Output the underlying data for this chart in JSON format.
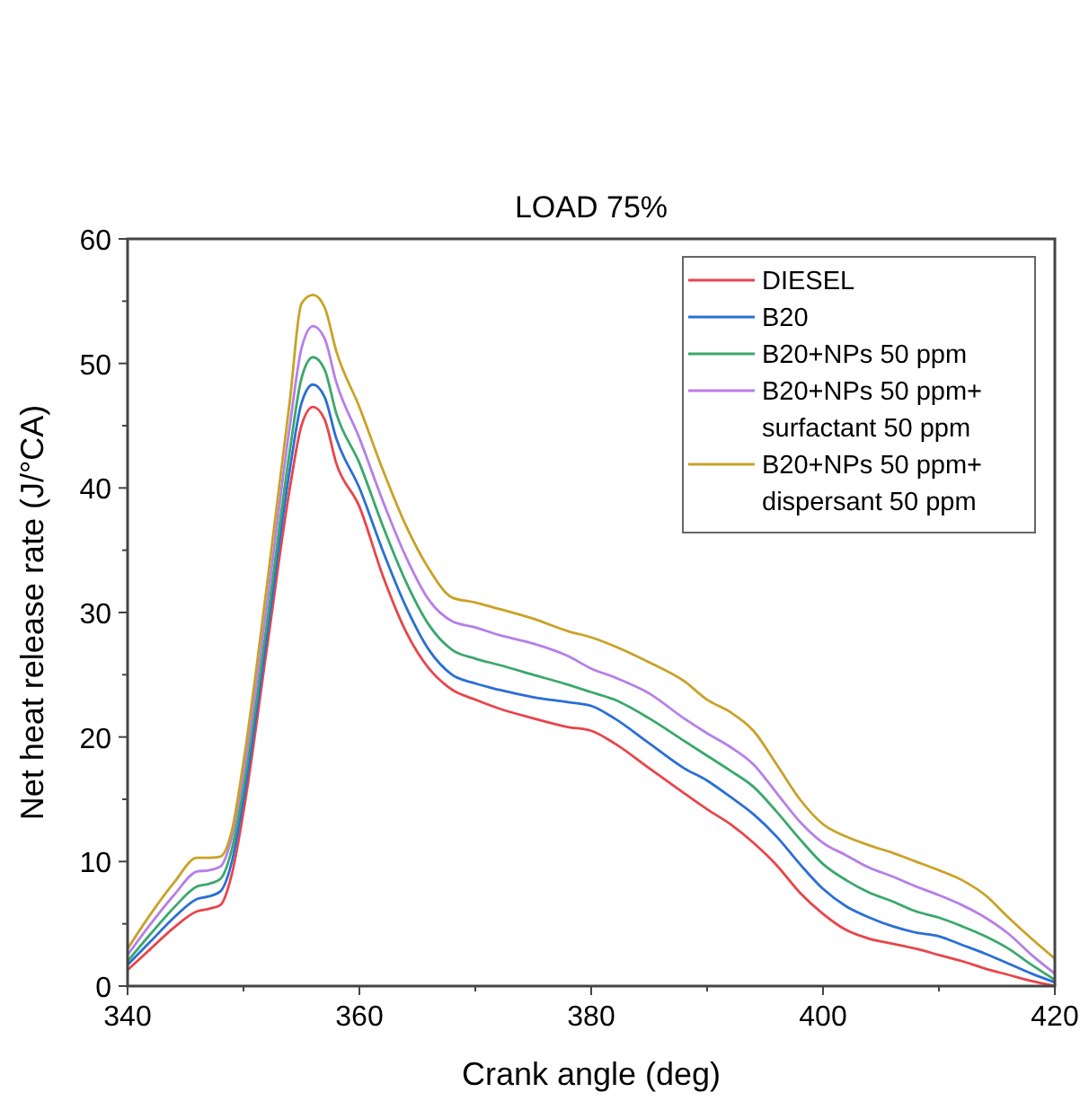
{
  "chart_data": {
    "type": "line",
    "title": "LOAD 75%",
    "xlabel": "Crank angle (deg)",
    "ylabel": "Net heat release rate (J/°CA)",
    "x": [
      340,
      342,
      344,
      346,
      347,
      348,
      349,
      350,
      352,
      354,
      355,
      356,
      357,
      358,
      360,
      362,
      364,
      366,
      368,
      370,
      372,
      375,
      378,
      380,
      382,
      385,
      388,
      390,
      392,
      394,
      396,
      398,
      400,
      402,
      404,
      406,
      408,
      410,
      412,
      414,
      416,
      418,
      420
    ],
    "series": [
      {
        "name": "DIESEL",
        "color": "#e8454a",
        "values": [
          1.3,
          3,
          4.7,
          6,
          6.2,
          6.5,
          9,
          14,
          27,
          40,
          45,
          46.5,
          45.5,
          42,
          38.5,
          33,
          28.5,
          25.5,
          23.8,
          23,
          22.3,
          21.5,
          20.8,
          20.5,
          19.5,
          17.5,
          15.5,
          14.2,
          13,
          11.5,
          9.7,
          7.5,
          5.8,
          4.5,
          3.8,
          3.4,
          3,
          2.5,
          2,
          1.4,
          0.9,
          0.4,
          0
        ]
      },
      {
        "name": "B20",
        "color": "#2a6fd6",
        "values": [
          1.7,
          3.6,
          5.5,
          7,
          7.2,
          7.6,
          10,
          15,
          28,
          41.5,
          46.8,
          48.3,
          47.3,
          44,
          40,
          35,
          30.5,
          27,
          25,
          24.3,
          23.8,
          23.2,
          22.8,
          22.5,
          21.5,
          19.5,
          17.5,
          16.5,
          15.2,
          13.8,
          12,
          9.8,
          7.8,
          6.4,
          5.5,
          4.8,
          4.3,
          4,
          3.3,
          2.6,
          1.8,
          1,
          0.3
        ]
      },
      {
        "name": "B20+NPs 50 ppm",
        "color": "#3aa86b",
        "values": [
          2,
          4.2,
          6.3,
          8,
          8.2,
          8.6,
          11,
          16,
          29,
          43,
          48.8,
          50.5,
          49.5,
          46,
          42,
          37,
          32.5,
          29,
          27,
          26.3,
          25.8,
          25,
          24.2,
          23.6,
          23,
          21.5,
          19.7,
          18.5,
          17.3,
          16,
          14,
          11.8,
          9.8,
          8.5,
          7.5,
          6.8,
          6,
          5.5,
          4.8,
          4,
          3,
          1.7,
          0.5
        ]
      },
      {
        "name": "B20+NPs 50 ppm+\nsurfactant 50 ppm",
        "color": "#b67fe8",
        "values": [
          2.5,
          5,
          7.3,
          9.2,
          9.3,
          9.6,
          12,
          17,
          30.5,
          45,
          51.2,
          53,
          52,
          48.5,
          44,
          39,
          34.5,
          31,
          29.3,
          28.8,
          28.2,
          27.5,
          26.5,
          25.5,
          24.8,
          23.5,
          21.5,
          20.3,
          19.2,
          17.8,
          15.5,
          13.2,
          11.5,
          10.5,
          9.5,
          8.8,
          8,
          7.3,
          6.5,
          5.5,
          4.2,
          2.5,
          1
        ]
      },
      {
        "name": "B20+NPs 50 ppm+\ndispersant 50 ppm",
        "color": "#c9a227",
        "values": [
          3,
          5.8,
          8.3,
          10.3,
          10.3,
          10.4,
          12.5,
          18,
          32,
          47,
          54.8,
          55.5,
          54.5,
          51,
          46.5,
          41.5,
          37,
          33.5,
          31.2,
          30.8,
          30.3,
          29.5,
          28.5,
          28,
          27.3,
          26,
          24.5,
          23,
          22,
          20.5,
          17.8,
          15,
          13,
          12,
          11.3,
          10.7,
          10,
          9.3,
          8.5,
          7.3,
          5.5,
          3.8,
          2.2
        ]
      }
    ],
    "xlim": [
      340,
      420
    ],
    "xticks": [
      340,
      {
        "value": 350,
        "label": null
      },
      360,
      {
        "value": 370,
        "label": null
      },
      380,
      {
        "value": 390,
        "label": null
      },
      400,
      {
        "value": 410,
        "label": null
      },
      420
    ],
    "ylim": [
      0,
      60
    ],
    "yticks": [
      0,
      {
        "value": 5,
        "label": null
      },
      10,
      {
        "value": 15,
        "label": null
      },
      20,
      {
        "value": 25,
        "label": null
      },
      30,
      {
        "value": 35,
        "label": null
      },
      40,
      {
        "value": 45,
        "label": null
      },
      50,
      {
        "value": 55,
        "label": null
      },
      60
    ],
    "grid": false,
    "legend": "top right",
    "marker": "none",
    "line_style": "solid"
  }
}
